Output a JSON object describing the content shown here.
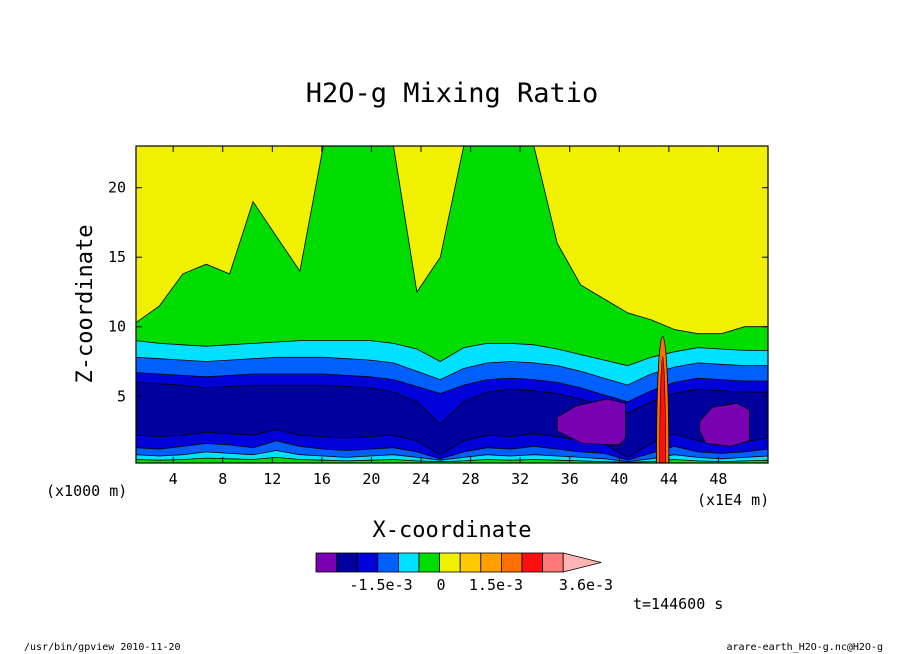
{
  "footer": {
    "left": "/usr/bin/gpview  2010-11-20",
    "right": "arare-earth_H2O-g.nc@H2O-g"
  },
  "chart_data": {
    "type": "heatmap",
    "title": "H2O-g Mixing Ratio",
    "xlabel": "X-coordinate",
    "ylabel": "Z-coordinate",
    "x_unit_label": "(x1000 m)",
    "x_scale_label": "(x1E4 m)",
    "time_label": "t=144600 s",
    "xlim": [
      1,
      52
    ],
    "ylim": [
      0.2,
      23
    ],
    "x_ticks": [
      4,
      8,
      12,
      16,
      20,
      24,
      28,
      32,
      36,
      40,
      44,
      48
    ],
    "y_ticks": [
      5,
      10,
      15,
      20
    ],
    "colorbar": {
      "colors": [
        "#7a00b4",
        "#00009e",
        "#0000d8",
        "#0060ff",
        "#00e0ff",
        "#00dc00",
        "#f0f000",
        "#ffc800",
        "#ffa000",
        "#ff7000",
        "#ff1010",
        "#ff7878",
        "#ffb4b4"
      ],
      "tick_labels": [
        "-1.5e-3",
        "0",
        "1.5e-3",
        "3.6e-3"
      ]
    },
    "band_colors": {
      "purple": "#7a00b4",
      "navy": "#00009e",
      "blue": "#0000d8",
      "mid_blue": "#0060ff",
      "cyan": "#00e0ff",
      "green": "#00dc00",
      "yellow": "#f0f000",
      "red": "#ff1010",
      "orange": "#ff7000"
    },
    "contour_levels": [
      {
        "name": "yellow_green",
        "color_key": "yellow",
        "z": [
          10.3,
          11.5,
          13.8,
          14.5,
          13.8,
          19,
          16.5,
          14,
          23,
          23,
          23,
          23,
          12.5,
          15,
          23,
          23,
          23,
          23,
          16,
          13,
          12,
          11,
          10.5,
          9.8,
          9.5,
          9.5,
          10,
          10
        ]
      },
      {
        "name": "green_cyan",
        "color_key": "green",
        "z": [
          9,
          8.8,
          8.7,
          8.6,
          8.7,
          8.8,
          8.9,
          9,
          9,
          9,
          9,
          8.8,
          8.4,
          7.5,
          8.5,
          8.8,
          8.8,
          8.7,
          8.4,
          8,
          7.6,
          7.2,
          7.8,
          8.2,
          8.5,
          8.4,
          8.3,
          8.3
        ]
      },
      {
        "name": "cyan_midblue",
        "color_key": "cyan",
        "z": [
          7.8,
          7.7,
          7.6,
          7.5,
          7.6,
          7.7,
          7.8,
          7.8,
          7.8,
          7.7,
          7.6,
          7.4,
          6.8,
          6.2,
          7,
          7.4,
          7.5,
          7.4,
          7.2,
          6.8,
          6.3,
          5.8,
          6.6,
          7.1,
          7.4,
          7.3,
          7.2,
          7.2
        ]
      },
      {
        "name": "midblue_blue",
        "color_key": "mid_blue",
        "z": [
          6.7,
          6.6,
          6.5,
          6.4,
          6.5,
          6.6,
          6.6,
          6.6,
          6.6,
          6.5,
          6.4,
          6.2,
          5.7,
          5.2,
          5.8,
          6.2,
          6.3,
          6.2,
          6,
          5.6,
          5.1,
          4.6,
          5.4,
          6,
          6.3,
          6.2,
          6.1,
          6.1
        ]
      },
      {
        "name": "blue_navy",
        "color_key": "blue",
        "z": [
          6,
          5.9,
          5.8,
          5.6,
          5.7,
          5.8,
          5.8,
          5.8,
          5.8,
          5.7,
          5.6,
          5.3,
          4.6,
          3,
          4.6,
          5.3,
          5.5,
          5.4,
          5.2,
          4.8,
          4.3,
          3.8,
          4.6,
          5.2,
          5.5,
          5.4,
          5.3,
          5.3
        ]
      },
      {
        "name": "navy_floor",
        "color_key": "navy",
        "z": [
          2.2,
          2.1,
          2.2,
          2.4,
          2.3,
          2.2,
          2.6,
          2.2,
          2.1,
          2,
          2.1,
          2.2,
          1.8,
          0.8,
          1.8,
          2.2,
          2.1,
          2.3,
          2.1,
          1.8,
          1.6,
          0.6,
          1.6,
          2.3,
          1.8,
          1.6,
          1.7,
          2
        ]
      },
      {
        "name": "blue_floor",
        "color_key": "blue",
        "z": [
          1.3,
          1.2,
          1.4,
          1.6,
          1.5,
          1.3,
          1.8,
          1.4,
          1.2,
          1.1,
          1.2,
          1.3,
          1,
          0.5,
          1,
          1.3,
          1.2,
          1.4,
          1.2,
          1,
          0.9,
          0.4,
          0.9,
          1.4,
          1,
          0.9,
          1,
          1.2
        ]
      },
      {
        "name": "midblue_floor",
        "color_key": "mid_blue",
        "z": [
          0.8,
          0.7,
          0.8,
          1,
          0.9,
          0.8,
          1.1,
          0.8,
          0.7,
          0.6,
          0.7,
          0.8,
          0.6,
          0.4,
          0.6,
          0.8,
          0.7,
          0.8,
          0.7,
          0.6,
          0.5,
          0.3,
          0.5,
          0.8,
          0.6,
          0.5,
          0.6,
          0.7
        ]
      },
      {
        "name": "cyan_floor",
        "color_key": "cyan",
        "z": [
          0.45,
          0.4,
          0.45,
          0.55,
          0.5,
          0.45,
          0.6,
          0.45,
          0.4,
          0.35,
          0.4,
          0.45,
          0.35,
          0.3,
          0.35,
          0.45,
          0.4,
          0.45,
          0.4,
          0.35,
          0.3,
          0.25,
          0.3,
          0.45,
          0.35,
          0.3,
          0.35,
          0.4
        ]
      }
    ],
    "purple_regions": [
      {
        "x": [
          35,
          36.5,
          39,
          40.5,
          40.5,
          40,
          37,
          35
        ],
        "z": [
          3.5,
          4.3,
          4.8,
          4.5,
          2,
          1.5,
          1.6,
          2.5
        ]
      },
      {
        "x": [
          46.5,
          47.5,
          49.5,
          50.5,
          50.5,
          49,
          47,
          46.5
        ],
        "z": [
          3.2,
          4.2,
          4.5,
          4,
          1.8,
          1.4,
          1.6,
          2.5
        ]
      }
    ],
    "convective_plume": {
      "x": [
        43,
        44
      ],
      "z": [
        0.2,
        9.3
      ]
    }
  }
}
